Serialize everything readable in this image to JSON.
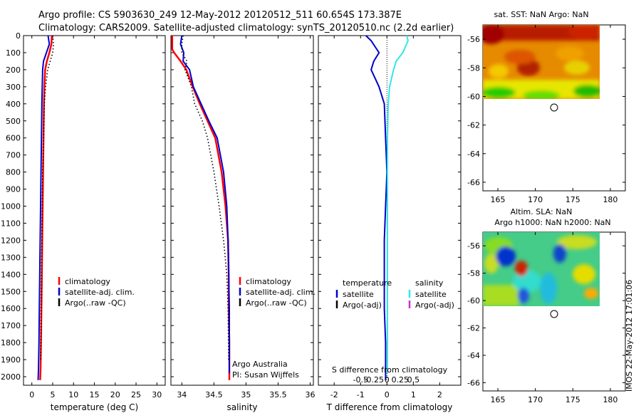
{
  "header": {
    "line1": "Argo profile: CS 5903630_249 12-May-2012 20120512_511 60.654S 173.387E",
    "line2": "Climatology: CARS2009. Satellite-adjusted climatology: synTS_20120510.nc (2.2d earlier)"
  },
  "watermark": "IMOS 22-May-2012 17:01:06",
  "colors": {
    "climatology": "#ff0000",
    "satellite": "#0000cc",
    "argo": "#000000",
    "salinity_satellite": "#33e6e6",
    "salinity_argo": "#cc33cc"
  },
  "legends": {
    "profile": [
      "climatology",
      "satellite-adj. clim.",
      "Argo(..raw -QC)"
    ],
    "diff_temp_title": "temperature",
    "diff_sal_title": "salinity",
    "diff_temp_items": [
      "satellite",
      "Argo(-adj)"
    ],
    "diff_sal_items": [
      "satellite",
      "Argo(-adj)"
    ]
  },
  "annotation": {
    "line1": "Argo Australia",
    "line2": "PI: Susan Wijffels"
  },
  "chart_data": [
    {
      "type": "line",
      "xlabel": "temperature (deg C)",
      "ylabel": "",
      "xlim": [
        -2,
        32
      ],
      "ylim": [
        2050,
        0
      ],
      "xticks": [
        0,
        5,
        10,
        15,
        20,
        25,
        30
      ],
      "yticks": [
        0,
        100,
        200,
        300,
        400,
        500,
        600,
        700,
        800,
        900,
        1000,
        1100,
        1200,
        1300,
        1400,
        1500,
        1600,
        1700,
        1800,
        1900,
        2000
      ],
      "series": [
        {
          "name": "climatology",
          "style": "solid",
          "x": [
            4.8,
            4.7,
            4.2,
            3.6,
            3.2,
            3.0,
            2.9,
            2.8,
            2.7,
            2.6,
            2.5,
            2.4,
            2.3,
            2.2,
            2.1,
            2.0
          ],
          "y": [
            0,
            50,
            100,
            150,
            200,
            300,
            400,
            600,
            800,
            1000,
            1200,
            1400,
            1600,
            1800,
            1950,
            2020
          ]
        },
        {
          "name": "satellite-adj. clim.",
          "style": "solid",
          "x": [
            3.9,
            4.2,
            3.5,
            2.8,
            2.6,
            2.5,
            2.4,
            2.3,
            2.2,
            2.1,
            2.0,
            1.9,
            1.8,
            1.7,
            1.6,
            1.5
          ],
          "y": [
            0,
            50,
            100,
            150,
            200,
            300,
            400,
            600,
            800,
            1000,
            1200,
            1400,
            1600,
            1800,
            1950,
            2020
          ]
        },
        {
          "name": "Argo(..raw -QC)",
          "style": "dotted",
          "x": [
            5.0,
            5.2,
            5.0,
            4.4,
            3.8,
            3.3,
            3.0,
            2.8,
            2.6,
            2.5,
            2.4,
            2.3,
            2.2,
            2.1
          ],
          "y": [
            0,
            50,
            100,
            150,
            200,
            300,
            400,
            600,
            800,
            1000,
            1200,
            1400,
            1600,
            1900
          ]
        }
      ]
    },
    {
      "type": "line",
      "xlabel": "salinity",
      "ylabel": "",
      "xlim": [
        33.83,
        36.05
      ],
      "ylim": [
        2050,
        0
      ],
      "xticks": [
        34,
        34.5,
        35,
        35.5,
        36
      ],
      "xticklabels": [
        "34",
        "34.5",
        "35",
        "35.5",
        "36"
      ],
      "series": [
        {
          "name": "climatology",
          "style": "solid",
          "x": [
            33.85,
            33.85,
            33.88,
            33.98,
            34.07,
            34.17,
            34.28,
            34.4,
            34.52,
            34.62,
            34.68,
            34.72,
            34.73,
            34.73,
            34.74,
            34.74,
            34.74
          ],
          "y": [
            0,
            80,
            100,
            150,
            200,
            300,
            400,
            500,
            600,
            800,
            1000,
            1200,
            1400,
            1600,
            1800,
            1950,
            2020
          ]
        },
        {
          "name": "satellite-adj. clim.",
          "style": "solid",
          "x": [
            34.0,
            33.98,
            34.03,
            34.02,
            34.12,
            34.18,
            34.3,
            34.42,
            34.55,
            34.65,
            34.7,
            34.72,
            34.73,
            34.74,
            34.74,
            34.74
          ],
          "y": [
            0,
            50,
            100,
            150,
            200,
            300,
            400,
            500,
            600,
            800,
            1000,
            1200,
            1400,
            1600,
            1800,
            1980
          ]
        },
        {
          "name": "Argo(..raw -QC)",
          "style": "dotted",
          "x": [
            34.02,
            34.0,
            34.0,
            34.08,
            34.05,
            34.15,
            34.2,
            34.32,
            34.4,
            34.5,
            34.58,
            34.65,
            34.7,
            34.72,
            34.73
          ],
          "y": [
            0,
            50,
            100,
            150,
            200,
            300,
            400,
            500,
            600,
            800,
            1000,
            1200,
            1400,
            1600,
            1900
          ]
        }
      ]
    },
    {
      "type": "line",
      "xlabel": "T difference from climatology",
      "title_bottom": "S difference from climatology",
      "xlim": [
        -2.6,
        2.8
      ],
      "ylim": [
        2050,
        0
      ],
      "xticks": [
        -2,
        -1,
        0,
        1,
        2
      ],
      "s_ticks": [
        -0.5,
        -0.25,
        0,
        0.25,
        0.5
      ],
      "s_ticklabels": [
        "-0.5",
        "-0.25",
        "0",
        "0.25",
        "0.5"
      ],
      "series": [
        {
          "name": "temperature satellite",
          "style": "solid",
          "x": [
            -0.8,
            -0.6,
            -0.3,
            -0.5,
            -0.6,
            -0.3,
            -0.1,
            -0.05,
            0.0,
            -0.05,
            -0.1,
            -0.1,
            -0.1,
            -0.05,
            -0.05,
            -0.05
          ],
          "y": [
            0,
            30,
            100,
            150,
            200,
            300,
            400,
            600,
            800,
            1000,
            1200,
            1400,
            1600,
            1800,
            1950,
            2020
          ]
        },
        {
          "name": "salinity satellite",
          "style": "solid",
          "x": [
            0.75,
            0.8,
            0.6,
            0.35,
            0.25,
            0.1,
            0.05,
            0.02,
            0.02,
            0.02,
            0.02,
            0.02,
            0.02,
            0.02,
            0.02
          ],
          "y": [
            0,
            30,
            100,
            150,
            200,
            300,
            400,
            600,
            800,
            1000,
            1200,
            1400,
            1600,
            1800,
            1980
          ]
        }
      ]
    },
    {
      "type": "heatmap",
      "title": "sat. SST: NaN  Argo: NaN",
      "xlim": [
        163,
        182
      ],
      "ylim": [
        -66.6,
        -55
      ],
      "xticks": [
        165,
        170,
        175,
        180
      ],
      "yticks": [
        -56,
        -58,
        -60,
        -62,
        -64,
        -66
      ],
      "marker": {
        "lon": 173.387,
        "lat": -60.654
      }
    },
    {
      "type": "heatmap",
      "title": "Altim. SLA: NaN",
      "subtitle": "Argo h1000: NaN h2000: NaN",
      "xlim": [
        163,
        182
      ],
      "ylim": [
        -66.6,
        -55
      ],
      "xticks": [
        165,
        170,
        175,
        180
      ],
      "yticks": [
        -56,
        -58,
        -60,
        -62,
        -64,
        -66
      ],
      "marker": {
        "lon": 173.387,
        "lat": -60.654
      }
    }
  ]
}
